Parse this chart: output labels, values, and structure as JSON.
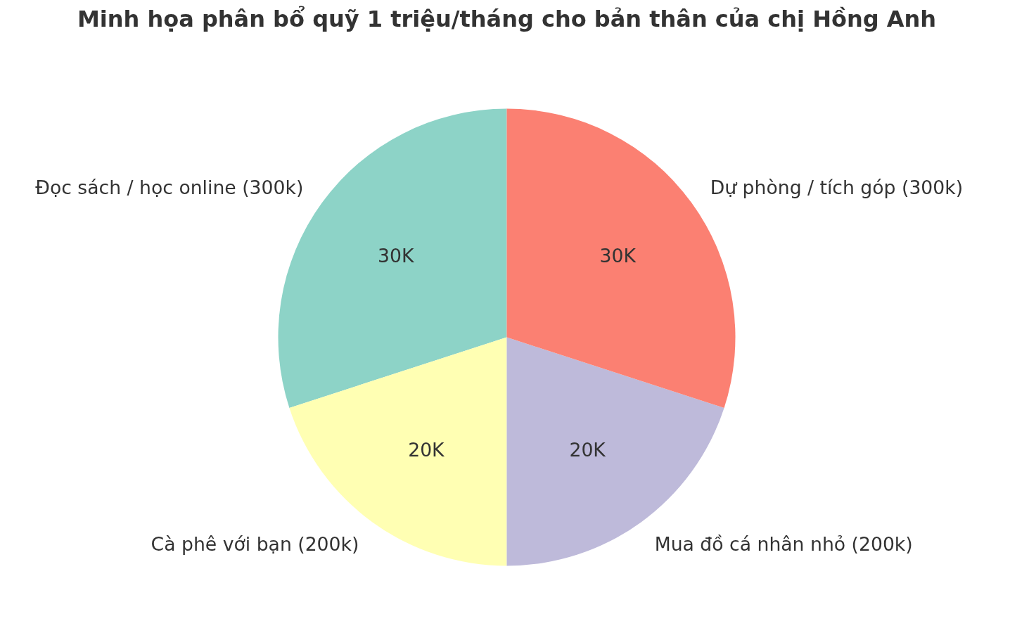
{
  "chart_data": {
    "type": "pie",
    "title": "Minh họa phân bổ quỹ 1 triệu/tháng cho bản thân của chị Hồng Anh",
    "categories": [
      "Đọc sách / học online (300k)",
      "Cà phê với bạn (200k)",
      "Mua đồ cá nhân nhỏ (200k)",
      "Dự phòng / tích góp (300k)"
    ],
    "values": [
      30,
      20,
      20,
      30
    ],
    "value_labels": [
      "30K",
      "20K",
      "20K",
      "30K"
    ],
    "colors": [
      "#8dd3c7",
      "#ffffb3",
      "#bebada",
      "#fb8072"
    ]
  }
}
